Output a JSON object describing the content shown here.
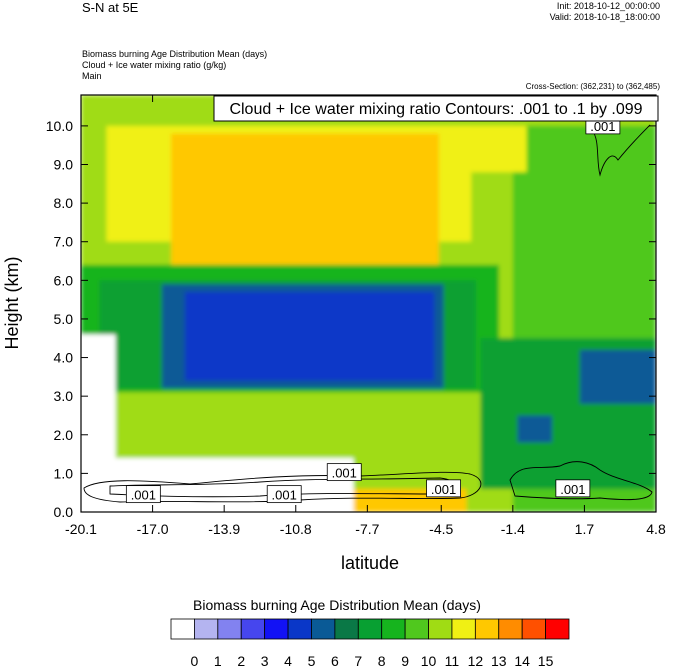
{
  "header": {
    "title": "S-N at 5E",
    "init": "Init: 2018-10-12_00:00:00",
    "valid": "Valid: 2018-10-18_18:00:00",
    "subtitles": [
      "Biomass burning Age Distribution Mean   (days)",
      "Cloud + Ice water mixing ratio   (g/kg)",
      "Main"
    ],
    "cross_section": "Cross-Section: (362,231) to (362,485)"
  },
  "chart_data": {
    "type": "heatmap",
    "xlabel": "latitude",
    "ylabel": "Height (km)",
    "xlim": [
      -20.1,
      4.8
    ],
    "ylim": [
      0.0,
      10.8
    ],
    "x_ticks": [
      "-20.1",
      "-17.0",
      "-13.9",
      "-10.8",
      "-7.7",
      "-4.5",
      "-1.4",
      "1.7",
      "4.8"
    ],
    "y_ticks": [
      "0.0",
      "1.0",
      "2.0",
      "3.0",
      "4.0",
      "5.0",
      "6.0",
      "7.0",
      "8.0",
      "9.0",
      "10.0"
    ],
    "x_tick_values": [
      -20.1,
      -17.0,
      -13.9,
      -10.8,
      -7.7,
      -4.5,
      -1.4,
      1.7,
      4.8
    ],
    "y_tick_values": [
      0,
      1,
      2,
      3,
      4,
      5,
      6,
      7,
      8,
      9,
      10
    ],
    "contour_info": "Cloud + Ice water mixing ratio Contours: .001 to .1 by .099",
    "contour_labels": [
      {
        "text": ".001",
        "lat": -17.4,
        "h": 0.45
      },
      {
        "text": ".001",
        "lat": -11.3,
        "h": 0.45
      },
      {
        "text": ".001",
        "lat": -8.7,
        "h": 1.02
      },
      {
        "text": ".001",
        "lat": -4.4,
        "h": 0.6
      },
      {
        "text": ".001",
        "lat": 1.2,
        "h": 0.6
      },
      {
        "text": ".001",
        "lat": 2.5,
        "h": 10.0
      }
    ],
    "regions": [
      {
        "level": 11,
        "box": [
          -20.1,
          4.8,
          0.0,
          10.8
        ]
      },
      {
        "level": 10,
        "box": [
          -1.4,
          4.8,
          0.0,
          10.0
        ]
      },
      {
        "level": 12,
        "box": [
          -19.0,
          -3.2,
          7.0,
          10.0
        ]
      },
      {
        "level": 12,
        "box": [
          -5.0,
          -0.8,
          8.8,
          10.0
        ]
      },
      {
        "level": 13,
        "box": [
          -16.2,
          -4.6,
          6.3,
          9.8
        ]
      },
      {
        "level": 9,
        "box": [
          -20.1,
          -2.0,
          3.1,
          6.4
        ]
      },
      {
        "level": 8,
        "box": [
          -19.3,
          -3.0,
          3.2,
          6.0
        ]
      },
      {
        "level": 8,
        "box": [
          -2.8,
          4.8,
          0.6,
          4.5
        ]
      },
      {
        "level": 6,
        "box": [
          -16.6,
          -4.4,
          3.2,
          5.9
        ]
      },
      {
        "level": 5,
        "box": [
          -15.6,
          -4.8,
          3.4,
          5.7
        ]
      },
      {
        "level": 6,
        "box": [
          1.5,
          4.8,
          2.8,
          4.2
        ]
      },
      {
        "level": 6,
        "box": [
          -1.2,
          0.3,
          1.8,
          2.5
        ]
      },
      {
        "level": 0,
        "box": [
          -20.1,
          -8.3,
          0.0,
          1.4
        ]
      },
      {
        "level": 0,
        "box": [
          -20.1,
          -18.6,
          0.0,
          4.6
        ]
      },
      {
        "level": 13,
        "box": [
          -8.3,
          -3.4,
          0.0,
          0.6
        ]
      }
    ]
  },
  "colorbar": {
    "title": "Biomass burning Age Distribution Mean  (days)",
    "labels": [
      "0",
      "1",
      "2",
      "3",
      "4",
      "5",
      "6",
      "7",
      "8",
      "9",
      "10",
      "11",
      "12",
      "13",
      "14",
      "15"
    ],
    "colors": [
      "#ffffff",
      "#b4b4f0",
      "#8282f0",
      "#4646ee",
      "#1212f5",
      "#0a37c8",
      "#0a5a96",
      "#0a7846",
      "#08a032",
      "#16b41e",
      "#50c81e",
      "#a0dc14",
      "#f0f014",
      "#ffc800",
      "#ff8c00",
      "#ff5000",
      "#ff0000"
    ]
  }
}
